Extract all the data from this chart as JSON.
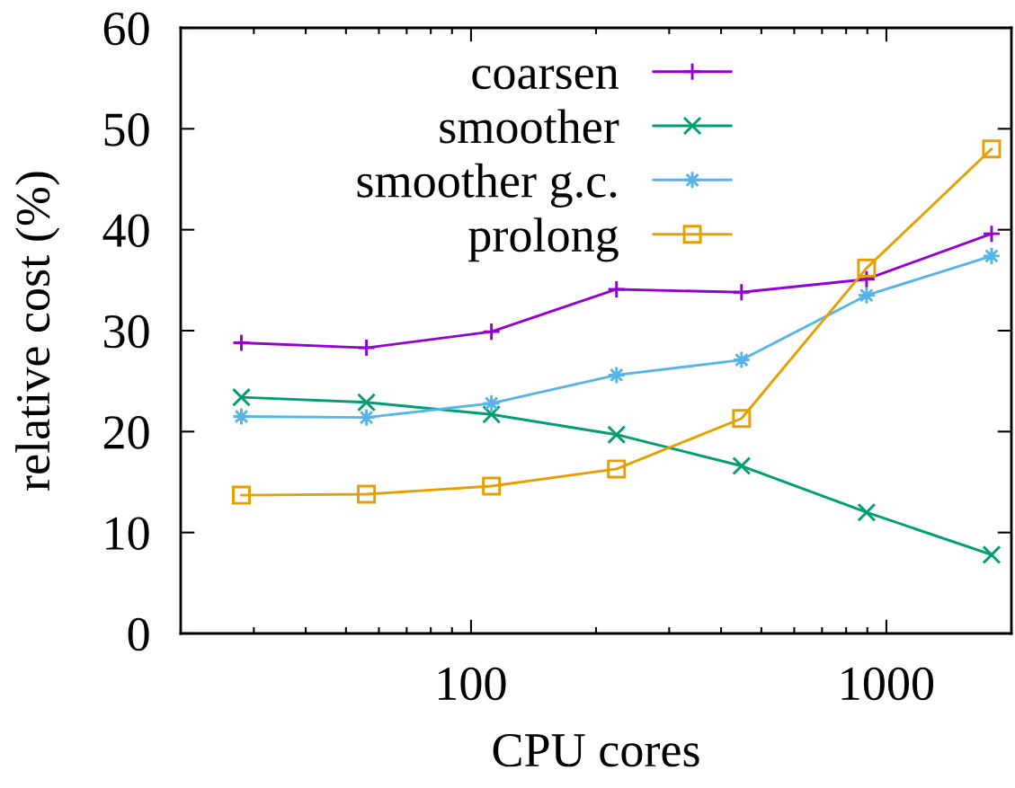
{
  "chart_data": {
    "type": "line",
    "xlabel": "CPU cores",
    "ylabel": "relative cost (%)",
    "x": [
      28,
      56,
      112,
      224,
      448,
      896,
      1792
    ],
    "log": "x",
    "xlim": [
      20,
      2000
    ],
    "xticks": [
      100,
      1000
    ],
    "ylim": [
      0,
      60
    ],
    "yticks": [
      0,
      10,
      20,
      30,
      40,
      50,
      60
    ],
    "legend": "top",
    "line_style": "solid",
    "series": [
      {
        "name": "coarsen",
        "color": "#9400d3",
        "marker": "plus",
        "values": [
          28.8,
          28.3,
          29.9,
          34.1,
          33.8,
          35.1,
          39.6
        ]
      },
      {
        "name": "smoother",
        "color": "#009e73",
        "marker": "cross",
        "values": [
          23.4,
          22.9,
          21.7,
          19.7,
          16.6,
          12.0,
          7.8
        ]
      },
      {
        "name": "smoother g.c.",
        "color": "#56b4e9",
        "marker": "star",
        "values": [
          21.5,
          21.4,
          22.8,
          25.6,
          27.1,
          33.5,
          37.4
        ]
      },
      {
        "name": "prolong",
        "color": "#e69f00",
        "marker": "square",
        "values": [
          13.7,
          13.8,
          14.6,
          16.3,
          21.3,
          36.2,
          48.0
        ]
      }
    ]
  }
}
